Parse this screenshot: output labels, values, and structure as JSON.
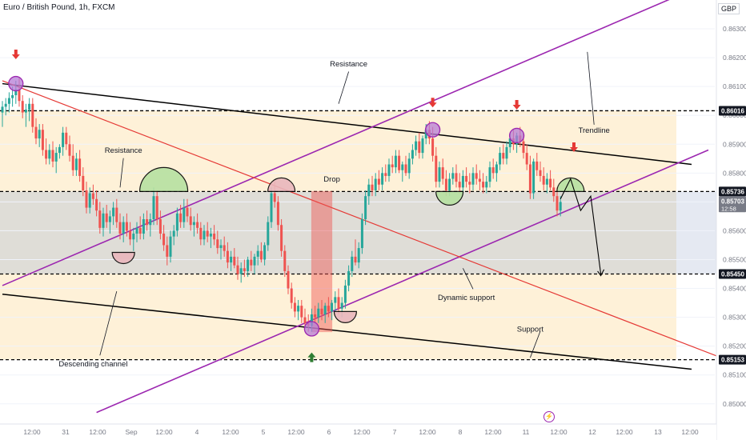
{
  "header": {
    "symbol_title": "Euro / British Pound, 1h, FXCM",
    "currency": "GBP"
  },
  "colors": {
    "bull": "#26a69a",
    "bear": "#ef5350",
    "channel": "#000000",
    "trendline": "#9c27b0",
    "red_line": "#e53935",
    "zone_beige": "#fdebc8",
    "zone_gray": "#d9d7d0",
    "arrow_red": "#e53935",
    "arrow_green": "#2e7d32",
    "badge_bg": "#131722",
    "badge_live": "#787b86"
  },
  "icons": {
    "lightning": "lightning-icon"
  },
  "chart_data": {
    "type": "candlestick",
    "title": "Euro / British Pound, 1h, FXCM",
    "ylabel": "GBP",
    "ylim": [
      0.8493,
      0.864
    ],
    "y_ticks": [
      0.85,
      0.851,
      0.852,
      0.853,
      0.854,
      0.855,
      0.856,
      0.857,
      0.858,
      0.859,
      0.86,
      0.861,
      0.862,
      0.863
    ],
    "x_tick_labels": [
      "12:00",
      "31",
      "12:00",
      "Sep",
      "12:00",
      "4",
      "12:00",
      "5",
      "12:00",
      "6",
      "12:00",
      "7",
      "12:00",
      "8",
      "12:00",
      "11",
      "12:00",
      "12",
      "12:00",
      "13",
      "12:00"
    ],
    "x_range_bars": [
      0,
      210
    ],
    "price_badges": [
      {
        "label": "0.86016",
        "value": 0.86016,
        "style": "dark"
      },
      {
        "label": "0.85736",
        "value": 0.85736,
        "style": "dark"
      },
      {
        "label": "0.85703",
        "value": 0.85703,
        "style": "live",
        "sub": "12:58"
      },
      {
        "label": "0.85450",
        "value": 0.8545,
        "style": "dark"
      },
      {
        "label": "0.85153",
        "value": 0.85153,
        "style": "dark"
      }
    ],
    "horizontal_levels": [
      0.86016,
      0.85736,
      0.8545,
      0.85153
    ],
    "zones": [
      {
        "name": "upper-beige",
        "from": 0.85736,
        "to": 0.86016
      },
      {
        "name": "middle-gray",
        "from": 0.8545,
        "to": 0.85736
      },
      {
        "name": "lower-beige",
        "from": 0.85153,
        "to": 0.8545
      }
    ],
    "lines": [
      {
        "name": "channel-top",
        "from": [
          0,
          0.8611
        ],
        "to": [
          205,
          0.8583
        ]
      },
      {
        "name": "channel-bottom",
        "from": [
          0,
          0.8538
        ],
        "to": [
          205,
          0.8512
        ]
      },
      {
        "name": "purple-upper",
        "from": [
          0,
          0.8541
        ],
        "to": [
          210,
          0.8646
        ]
      },
      {
        "name": "purple-lower",
        "from": [
          28,
          0.8497
        ],
        "to": [
          210,
          0.8588
        ]
      },
      {
        "name": "red-descending",
        "from": [
          0,
          0.8612
        ],
        "to": [
          216,
          0.8515
        ]
      }
    ],
    "annotations": [
      {
        "text": "Resistance",
        "x": 103,
        "y": 0.8617
      },
      {
        "text": "Resistance",
        "x": 36,
        "y": 0.8587
      },
      {
        "text": "Drop",
        "x": 98,
        "y": 0.8577
      },
      {
        "text": "Trendline",
        "x": 176,
        "y": 0.8594
      },
      {
        "text": "Descending channel",
        "x": 27,
        "y": 0.8513
      },
      {
        "text": "Dynamic support",
        "x": 138,
        "y": 0.8536
      },
      {
        "text": "Support",
        "x": 157,
        "y": 0.8525
      }
    ],
    "down_arrows": [
      4,
      128,
      153,
      170
    ],
    "up_arrows": [
      92
    ],
    "circles": [
      [
        4,
        0.8611
      ],
      [
        92,
        0.8526
      ],
      [
        128,
        0.8595
      ],
      [
        153,
        0.8593
      ]
    ],
    "candles": [
      [
        0.8601,
        0.8605,
        0.8596,
        0.8603
      ],
      [
        0.8603,
        0.8606,
        0.86,
        0.8604
      ],
      [
        0.8604,
        0.8608,
        0.8601,
        0.8606
      ],
      [
        0.8606,
        0.861,
        0.8603,
        0.8607
      ],
      [
        0.8607,
        0.8612,
        0.8604,
        0.8609
      ],
      [
        0.8609,
        0.8613,
        0.8603,
        0.8605
      ],
      [
        0.8605,
        0.8607,
        0.8599,
        0.8601
      ],
      [
        0.8601,
        0.8604,
        0.8596,
        0.8602
      ],
      [
        0.8602,
        0.8606,
        0.8598,
        0.8604
      ],
      [
        0.8604,
        0.8606,
        0.8594,
        0.8596
      ],
      [
        0.8596,
        0.8599,
        0.859,
        0.8592
      ],
      [
        0.8592,
        0.8597,
        0.8589,
        0.8595
      ],
      [
        0.8595,
        0.8597,
        0.8586,
        0.8588
      ],
      [
        0.8588,
        0.8592,
        0.8583,
        0.8585
      ],
      [
        0.8585,
        0.859,
        0.8583,
        0.8588
      ],
      [
        0.8588,
        0.8591,
        0.8582,
        0.8584
      ],
      [
        0.8584,
        0.8589,
        0.858,
        0.8587
      ],
      [
        0.8587,
        0.859,
        0.8585,
        0.8589
      ],
      [
        0.8589,
        0.8596,
        0.8586,
        0.8594
      ],
      [
        0.8594,
        0.8596,
        0.8588,
        0.859
      ],
      [
        0.859,
        0.8593,
        0.8584,
        0.8586
      ],
      [
        0.8586,
        0.859,
        0.8579,
        0.8581
      ],
      [
        0.8581,
        0.8587,
        0.8579,
        0.8585
      ],
      [
        0.8585,
        0.8588,
        0.8577,
        0.8579
      ],
      [
        0.8579,
        0.8582,
        0.8572,
        0.8574
      ],
      [
        0.8574,
        0.8577,
        0.8566,
        0.8568
      ],
      [
        0.8568,
        0.8575,
        0.8566,
        0.8573
      ],
      [
        0.8573,
        0.8576,
        0.8569,
        0.8571
      ],
      [
        0.8571,
        0.8574,
        0.8565,
        0.8567
      ],
      [
        0.8567,
        0.857,
        0.8559,
        0.8561
      ],
      [
        0.8561,
        0.8568,
        0.8558,
        0.8566
      ],
      [
        0.8566,
        0.8569,
        0.8561,
        0.8563
      ],
      [
        0.8563,
        0.8567,
        0.8559,
        0.8565
      ],
      [
        0.8565,
        0.857,
        0.8562,
        0.8568
      ],
      [
        0.8568,
        0.8571,
        0.8561,
        0.8563
      ],
      [
        0.8563,
        0.8566,
        0.8557,
        0.8559
      ],
      [
        0.8559,
        0.8565,
        0.8556,
        0.8563
      ],
      [
        0.8563,
        0.8566,
        0.8558,
        0.856
      ],
      [
        0.856,
        0.8563,
        0.8555,
        0.8557
      ],
      [
        0.8557,
        0.8561,
        0.8553,
        0.8559
      ],
      [
        0.8559,
        0.8563,
        0.8556,
        0.8561
      ],
      [
        0.8561,
        0.8565,
        0.8557,
        0.8559
      ],
      [
        0.8559,
        0.8566,
        0.8557,
        0.8564
      ],
      [
        0.8564,
        0.8567,
        0.856,
        0.8562
      ],
      [
        0.8562,
        0.8566,
        0.8558,
        0.8564
      ],
      [
        0.8564,
        0.8575,
        0.8562,
        0.8572
      ],
      [
        0.8572,
        0.8574,
        0.8562,
        0.8564
      ],
      [
        0.8564,
        0.8567,
        0.8557,
        0.8559
      ],
      [
        0.8559,
        0.8562,
        0.8553,
        0.8555
      ],
      [
        0.8555,
        0.8558,
        0.8548,
        0.8551
      ],
      [
        0.8551,
        0.856,
        0.8549,
        0.8558
      ],
      [
        0.8558,
        0.8562,
        0.8555,
        0.856
      ],
      [
        0.856,
        0.8568,
        0.8558,
        0.8566
      ],
      [
        0.8566,
        0.8569,
        0.8561,
        0.8563
      ],
      [
        0.8563,
        0.8571,
        0.8561,
        0.8568
      ],
      [
        0.8568,
        0.8571,
        0.8563,
        0.8565
      ],
      [
        0.8565,
        0.8568,
        0.856,
        0.8562
      ],
      [
        0.8562,
        0.8565,
        0.8558,
        0.8563
      ],
      [
        0.8563,
        0.8566,
        0.8559,
        0.8561
      ],
      [
        0.8561,
        0.8563,
        0.8555,
        0.8557
      ],
      [
        0.8557,
        0.8562,
        0.8555,
        0.856
      ],
      [
        0.856,
        0.8563,
        0.8556,
        0.8558
      ],
      [
        0.8558,
        0.8561,
        0.8554,
        0.8559
      ],
      [
        0.8559,
        0.8562,
        0.8555,
        0.8557
      ],
      [
        0.8557,
        0.856,
        0.8552,
        0.8554
      ],
      [
        0.8554,
        0.8557,
        0.855,
        0.8555
      ],
      [
        0.8555,
        0.8558,
        0.8551,
        0.8553
      ],
      [
        0.8553,
        0.8556,
        0.8547,
        0.8549
      ],
      [
        0.8549,
        0.8553,
        0.8546,
        0.8551
      ],
      [
        0.8551,
        0.8554,
        0.8547,
        0.8548
      ],
      [
        0.8548,
        0.8551,
        0.8543,
        0.8545
      ],
      [
        0.8545,
        0.8549,
        0.8542,
        0.8547
      ],
      [
        0.8547,
        0.855,
        0.8544,
        0.8546
      ],
      [
        0.8546,
        0.8551,
        0.8544,
        0.855
      ],
      [
        0.855,
        0.8553,
        0.8546,
        0.8548
      ],
      [
        0.8548,
        0.8552,
        0.8545,
        0.8551
      ],
      [
        0.8551,
        0.8555,
        0.8548,
        0.8553
      ],
      [
        0.8553,
        0.8556,
        0.8549,
        0.855
      ],
      [
        0.855,
        0.8556,
        0.8548,
        0.8555
      ],
      [
        0.8555,
        0.8565,
        0.8553,
        0.8563
      ],
      [
        0.8563,
        0.8575,
        0.8561,
        0.8573
      ],
      [
        0.8573,
        0.8577,
        0.8568,
        0.857
      ],
      [
        0.857,
        0.8572,
        0.856,
        0.8562
      ],
      [
        0.8562,
        0.8564,
        0.8551,
        0.8553
      ],
      [
        0.8553,
        0.8555,
        0.8544,
        0.8546
      ],
      [
        0.8546,
        0.8548,
        0.8538,
        0.854
      ],
      [
        0.854,
        0.8542,
        0.8533,
        0.8535
      ],
      [
        0.8535,
        0.8537,
        0.853,
        0.8532
      ],
      [
        0.8532,
        0.8536,
        0.8529,
        0.8534
      ],
      [
        0.8534,
        0.8536,
        0.8528,
        0.853
      ],
      [
        0.853,
        0.8533,
        0.8526,
        0.8528
      ],
      [
        0.8528,
        0.8531,
        0.8525,
        0.8527
      ],
      [
        0.8527,
        0.8533,
        0.8525,
        0.8531
      ],
      [
        0.8531,
        0.8534,
        0.8528,
        0.853
      ],
      [
        0.853,
        0.8535,
        0.8528,
        0.8533
      ],
      [
        0.8533,
        0.8536,
        0.8529,
        0.8531
      ],
      [
        0.8531,
        0.8535,
        0.8528,
        0.8534
      ],
      [
        0.8534,
        0.8537,
        0.853,
        0.8532
      ],
      [
        0.8532,
        0.8536,
        0.8529,
        0.8535
      ],
      [
        0.8535,
        0.8539,
        0.8532,
        0.8537
      ],
      [
        0.8537,
        0.854,
        0.8531,
        0.8533
      ],
      [
        0.8533,
        0.8537,
        0.853,
        0.8535
      ],
      [
        0.8535,
        0.8543,
        0.8533,
        0.8541
      ],
      [
        0.8541,
        0.8548,
        0.8539,
        0.8546
      ],
      [
        0.8546,
        0.8553,
        0.8544,
        0.8551
      ],
      [
        0.8551,
        0.8557,
        0.8548,
        0.8549
      ],
      [
        0.8549,
        0.8556,
        0.8547,
        0.8554
      ],
      [
        0.8554,
        0.8566,
        0.8552,
        0.8564
      ],
      [
        0.8564,
        0.8574,
        0.8562,
        0.8572
      ],
      [
        0.8572,
        0.8578,
        0.8569,
        0.8576
      ],
      [
        0.8576,
        0.8579,
        0.8572,
        0.8574
      ],
      [
        0.8574,
        0.858,
        0.8572,
        0.8578
      ],
      [
        0.8578,
        0.8581,
        0.8574,
        0.8576
      ],
      [
        0.8576,
        0.8582,
        0.8574,
        0.858
      ],
      [
        0.858,
        0.8583,
        0.8577,
        0.8579
      ],
      [
        0.8579,
        0.8585,
        0.8577,
        0.8583
      ],
      [
        0.8583,
        0.8586,
        0.858,
        0.8582
      ],
      [
        0.8582,
        0.8588,
        0.858,
        0.8586
      ],
      [
        0.8586,
        0.8588,
        0.858,
        0.8581
      ],
      [
        0.8581,
        0.8584,
        0.8577,
        0.8583
      ],
      [
        0.8583,
        0.8586,
        0.8579,
        0.858
      ],
      [
        0.858,
        0.8587,
        0.8578,
        0.8585
      ],
      [
        0.8585,
        0.859,
        0.8583,
        0.8588
      ],
      [
        0.8588,
        0.8593,
        0.8586,
        0.8591
      ],
      [
        0.8591,
        0.8594,
        0.8585,
        0.8587
      ],
      [
        0.8587,
        0.8593,
        0.8585,
        0.8592
      ],
      [
        0.8592,
        0.8597,
        0.859,
        0.8595
      ],
      [
        0.8595,
        0.8598,
        0.859,
        0.8592
      ],
      [
        0.8592,
        0.8596,
        0.8584,
        0.8586
      ],
      [
        0.8586,
        0.8589,
        0.8575,
        0.8577
      ],
      [
        0.8577,
        0.8584,
        0.8575,
        0.8582
      ],
      [
        0.8582,
        0.8585,
        0.8576,
        0.8578
      ],
      [
        0.8578,
        0.8581,
        0.8572,
        0.8574
      ],
      [
        0.8574,
        0.858,
        0.8572,
        0.8578
      ],
      [
        0.8578,
        0.8582,
        0.8576,
        0.858
      ],
      [
        0.858,
        0.8583,
        0.8575,
        0.8577
      ],
      [
        0.8577,
        0.858,
        0.8573,
        0.8575
      ],
      [
        0.8575,
        0.8581,
        0.8573,
        0.8579
      ],
      [
        0.8579,
        0.8582,
        0.8575,
        0.8577
      ],
      [
        0.8577,
        0.858,
        0.8573,
        0.8576
      ],
      [
        0.8576,
        0.8582,
        0.8574,
        0.858
      ],
      [
        0.858,
        0.8583,
        0.8576,
        0.8578
      ],
      [
        0.8578,
        0.8581,
        0.8574,
        0.8577
      ],
      [
        0.8577,
        0.858,
        0.8573,
        0.8575
      ],
      [
        0.8575,
        0.8579,
        0.8573,
        0.8577
      ],
      [
        0.8577,
        0.8584,
        0.8575,
        0.8582
      ],
      [
        0.8582,
        0.8585,
        0.8578,
        0.858
      ],
      [
        0.858,
        0.8584,
        0.8577,
        0.8583
      ],
      [
        0.8583,
        0.8589,
        0.8581,
        0.8587
      ],
      [
        0.8587,
        0.859,
        0.8583,
        0.8585
      ],
      [
        0.8585,
        0.8591,
        0.8583,
        0.8589
      ],
      [
        0.8589,
        0.8594,
        0.8587,
        0.8592
      ],
      [
        0.8592,
        0.8595,
        0.8588,
        0.859
      ],
      [
        0.859,
        0.8594,
        0.8587,
        0.8593
      ],
      [
        0.8593,
        0.8596,
        0.8589,
        0.8591
      ],
      [
        0.8591,
        0.8594,
        0.8585,
        0.8587
      ],
      [
        0.8587,
        0.859,
        0.8581,
        0.8583
      ],
      [
        0.8583,
        0.8586,
        0.8571,
        0.8573
      ],
      [
        0.8573,
        0.8585,
        0.8571,
        0.8584
      ],
      [
        0.8584,
        0.8587,
        0.8579,
        0.8581
      ],
      [
        0.8581,
        0.8584,
        0.8577,
        0.8579
      ],
      [
        0.8579,
        0.8582,
        0.8574,
        0.8576
      ],
      [
        0.8576,
        0.858,
        0.8573,
        0.8578
      ],
      [
        0.8578,
        0.8581,
        0.8574,
        0.8575
      ],
      [
        0.8575,
        0.8578,
        0.857,
        0.8572
      ],
      [
        0.8572,
        0.8575,
        0.8565,
        0.8567
      ],
      [
        0.8567,
        0.8572,
        0.8565,
        0.857
      ]
    ]
  }
}
